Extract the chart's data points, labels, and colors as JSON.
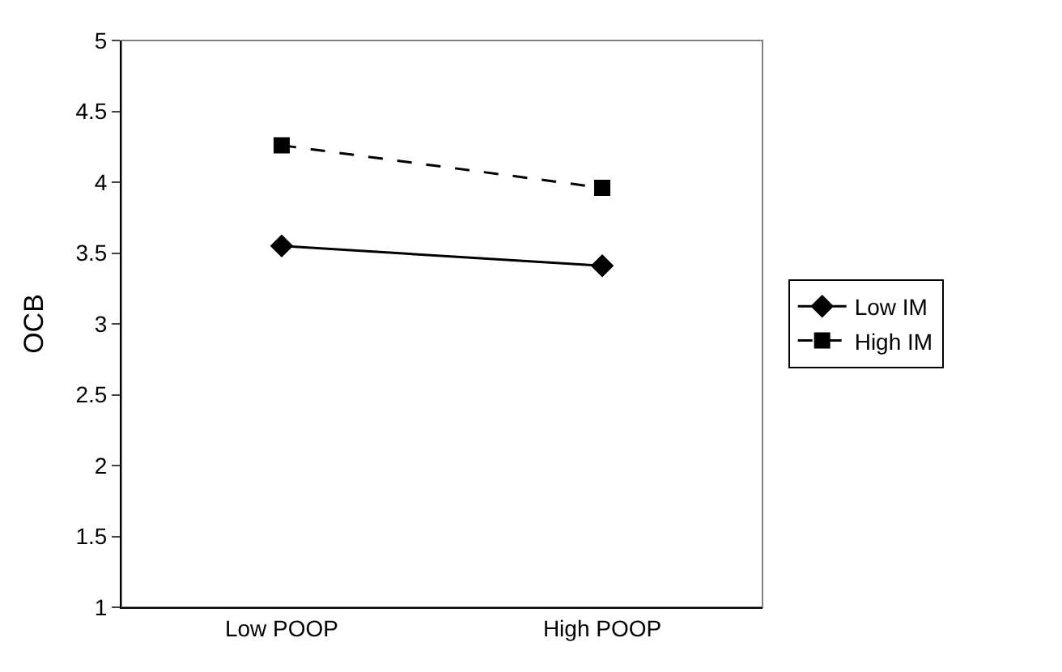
{
  "chart_data": {
    "type": "line",
    "ylabel": "OCB",
    "categories": [
      "Low POOP",
      "High POOP"
    ],
    "series": [
      {
        "name": "Low IM",
        "color": "#000000",
        "values": [
          3.55,
          3.41
        ],
        "marker": "diamond",
        "line_style": "solid"
      },
      {
        "name": "High IM",
        "color": "#000000",
        "values": [
          4.26,
          3.96
        ],
        "marker": "square",
        "line_style": "dashed"
      }
    ],
    "ylim": [
      1,
      5
    ],
    "yticks": [
      1,
      1.5,
      2,
      2.5,
      3,
      3.5,
      4,
      4.5,
      5
    ],
    "grid": false,
    "legend": "right"
  }
}
